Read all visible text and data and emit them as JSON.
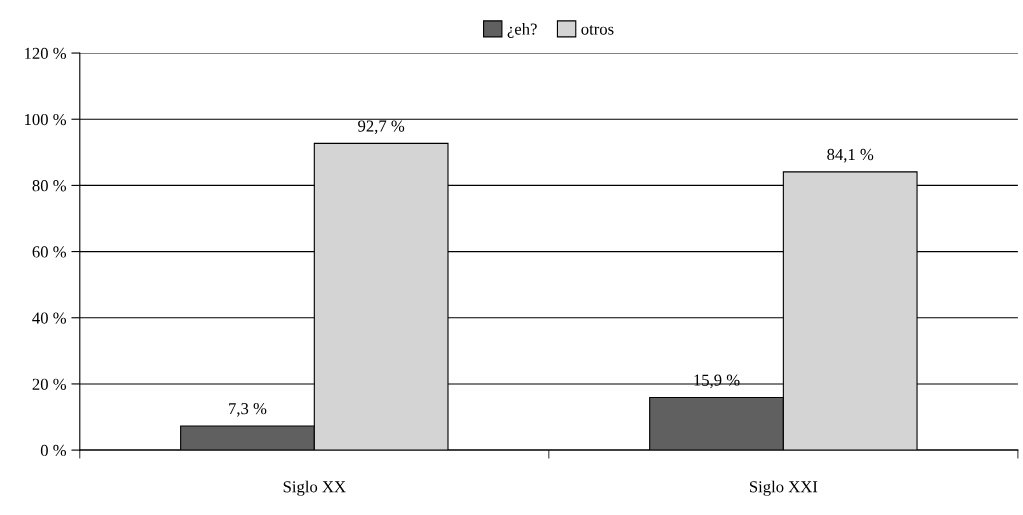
{
  "chart_data": {
    "type": "bar",
    "categories": [
      "Siglo XX",
      "Siglo XXI"
    ],
    "series": [
      {
        "name": "¿eh?",
        "color": "#606060",
        "values": [
          7.3,
          15.9
        ],
        "value_labels": [
          "7,3 %",
          "15,9 %"
        ]
      },
      {
        "name": "otros",
        "color": "#d4d4d4",
        "values": [
          92.7,
          84.1
        ],
        "value_labels": [
          "92,7 %",
          "84,1 %"
        ]
      }
    ],
    "ylim": [
      0,
      120
    ],
    "yticks": [
      {
        "value": 0,
        "label": "0 %"
      },
      {
        "value": 20,
        "label": "20 %"
      },
      {
        "value": 40,
        "label": "40 %"
      },
      {
        "value": 60,
        "label": "60 %"
      },
      {
        "value": 80,
        "label": "80 %"
      },
      {
        "value": 100,
        "label": "100 %"
      },
      {
        "value": 120,
        "label": "120 %"
      }
    ],
    "grid": "y",
    "legend": "top"
  }
}
